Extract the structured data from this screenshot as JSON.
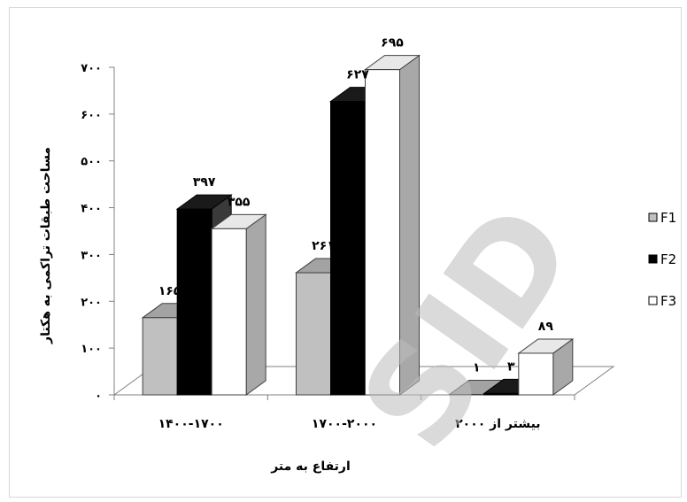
{
  "chart_data": {
    "type": "bar",
    "three_d": true,
    "categories": [
      "۱۴۰۰-۱۷۰۰",
      "۱۷۰۰-۲۰۰۰",
      "بیشتر از ۲۰۰۰"
    ],
    "series": [
      {
        "name": "F1",
        "values": [
          165,
          261,
          1
        ],
        "labels": [
          "۱۶۵",
          "۲۶۱",
          "۱"
        ],
        "color": "#c0c0c0"
      },
      {
        "name": "F2",
        "values": [
          397,
          627,
          3
        ],
        "labels": [
          "۳۹۷",
          "۶۲۷",
          "۳"
        ],
        "color": "#000000"
      },
      {
        "name": "F3",
        "values": [
          355,
          695,
          89
        ],
        "labels": [
          "۳۵۵",
          "۶۹۵",
          "۸۹"
        ],
        "color": "#ffffff"
      }
    ],
    "ylim": [
      0,
      700
    ],
    "yticks": [
      0,
      100,
      200,
      300,
      400,
      500,
      600,
      700
    ],
    "ytick_labels": [
      "۰",
      "۱۰۰",
      "۲۰۰",
      "۳۰۰",
      "۴۰۰",
      "۵۰۰",
      "۶۰۰",
      "۷۰۰"
    ],
    "xlabel": "ارتفاع به متر",
    "ylabel": "مساحت طبقات تراکمی به هکتار",
    "legend_position": "right",
    "grid": false
  },
  "watermark": "SID"
}
